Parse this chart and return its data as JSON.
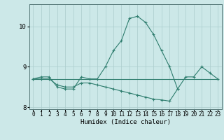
{
  "xlabel": "Humidex (Indice chaleur)",
  "x_values": [
    0,
    1,
    2,
    3,
    4,
    5,
    6,
    7,
    8,
    9,
    10,
    11,
    12,
    13,
    14,
    15,
    16,
    17,
    18,
    19,
    20,
    21,
    22,
    23
  ],
  "line1_y": [
    8.7,
    8.75,
    8.75,
    8.5,
    8.45,
    8.45,
    8.75,
    8.7,
    8.7,
    9.0,
    9.4,
    9.65,
    10.2,
    10.25,
    10.1,
    9.8,
    9.4,
    9.0,
    8.45,
    8.75,
    8.75,
    9.0,
    8.85,
    8.7
  ],
  "line2_y": [
    8.7,
    8.7,
    8.7,
    8.55,
    8.5,
    8.5,
    8.6,
    8.6,
    8.55,
    8.5,
    8.45,
    8.4,
    8.35,
    8.3,
    8.25,
    8.2,
    8.18,
    8.15,
    8.45,
    null,
    null,
    null,
    null,
    null
  ],
  "line3_y": [
    8.7,
    8.7,
    8.7,
    8.7,
    8.7,
    8.7,
    8.7,
    8.7,
    8.7,
    8.7,
    8.7,
    8.7,
    8.7,
    8.7,
    8.7,
    8.7,
    8.7,
    8.7,
    8.7,
    8.7,
    8.7,
    8.7,
    8.7,
    8.7
  ],
  "line_color": "#2e7d6e",
  "bg_color": "#cce8e8",
  "grid_color": "#aacccc",
  "ylim": [
    7.95,
    10.55
  ],
  "yticks": [
    8,
    9,
    10
  ],
  "xlim": [
    -0.5,
    23.5
  ],
  "figsize": [
    3.2,
    2.0
  ],
  "dpi": 100
}
